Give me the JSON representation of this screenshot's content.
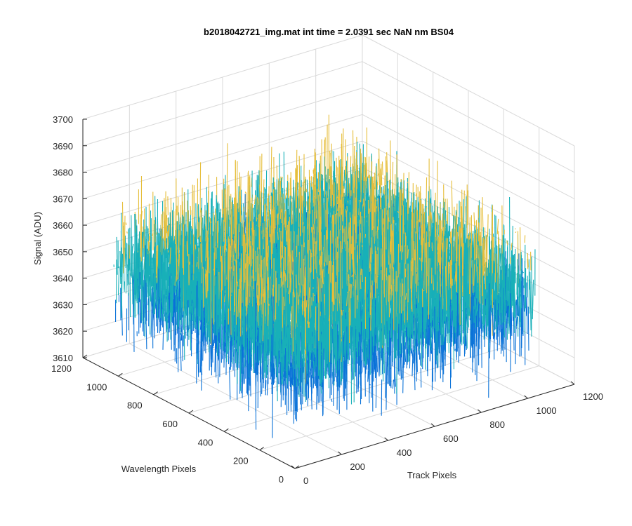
{
  "chart_data": {
    "type": "surface-3d",
    "title": "b2018042721_img.mat int time = 2.0391 sec  NaN nm BS04",
    "xlabel": "Track Pixels",
    "ylabel": "Wavelength Pixels",
    "zlabel": "Signal (ADU)",
    "xlim": [
      0,
      1200
    ],
    "ylim": [
      0,
      1200
    ],
    "zlim": [
      3610,
      3700
    ],
    "x_ticks": [
      "0",
      "200",
      "400",
      "600",
      "800",
      "1000",
      "1200"
    ],
    "y_ticks": [
      "0",
      "200",
      "400",
      "600",
      "800",
      "1000",
      "1200"
    ],
    "z_ticks": [
      "3610",
      "3620",
      "3630",
      "3640",
      "3650",
      "3660",
      "3670",
      "3680",
      "3690",
      "3700"
    ],
    "surface": {
      "x_range": [
        0,
        1024
      ],
      "y_range": [
        0,
        1024
      ],
      "mean": 3650,
      "typical_min": 3625,
      "typical_max": 3680,
      "colormap": "parula"
    },
    "grid": true,
    "colors": {
      "grid": "#d9d9d9",
      "axis": "#262626",
      "low": "#0a72d8",
      "mid": "#18b0b8",
      "high": "#e6be3a"
    }
  }
}
